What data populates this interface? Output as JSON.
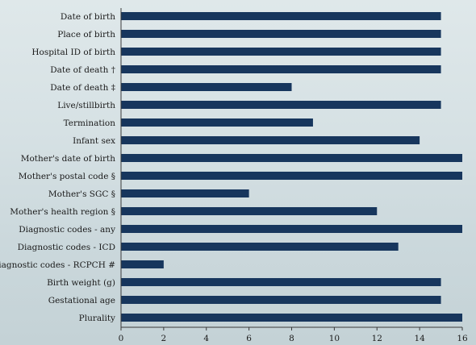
{
  "chart_data": {
    "type": "bar",
    "orientation": "horizontal",
    "categories": [
      "Date of birth",
      "Place of birth",
      "Hospital ID of birth",
      "Date of death †",
      "Date of death ‡",
      "Live/stillbirth",
      "Termination",
      "Infant sex",
      "Mother's date of birth",
      "Mother's postal code §",
      "Mother's SGC §",
      "Mother's health region §",
      "Diagnostic codes - any",
      "Diagnostic codes - ICD",
      "Diagnostic codes - RCPCH #",
      "Birth weight (g)",
      "Gestational age",
      "Plurality"
    ],
    "values": [
      15,
      15,
      15,
      15,
      8,
      15,
      9,
      14,
      16,
      16,
      6,
      12,
      16,
      13,
      2,
      15,
      15,
      16
    ],
    "xlim": [
      0,
      16
    ],
    "xticks": [
      "0",
      "2",
      "4",
      "6",
      "8",
      "10",
      "12",
      "14",
      "16"
    ],
    "title": "",
    "xlabel": "",
    "ylabel": "",
    "grid": false,
    "bar_color": "#17365d",
    "axis_color": "#3a3a3a"
  }
}
